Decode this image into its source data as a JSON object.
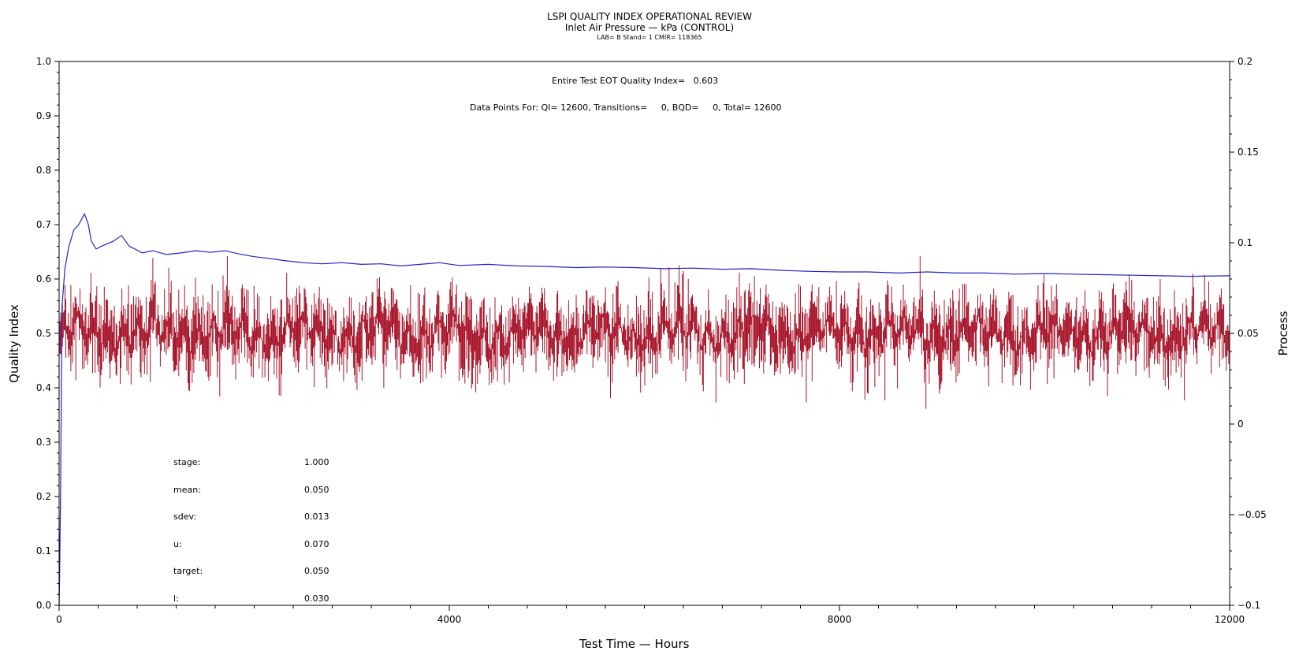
{
  "header": {
    "title": "LSPI QUALITY INDEX OPERATIONAL REVIEW",
    "subtitle": "Inlet Air Pressure — kPa (CONTROL)",
    "meta": "LAB= B Stand= 1 CMIR= 118365"
  },
  "annotations": {
    "eot_qi": "Entire Test EOT Quality Index=   0.603",
    "data_points": "Data Points For: QI= 12600, Transitions=     0, BQD=     0, Total= 12600"
  },
  "stats": [
    {
      "label": "stage:",
      "value": "1.000"
    },
    {
      "label": "mean:",
      "value": "0.050"
    },
    {
      "label": "sdev:",
      "value": "0.013"
    },
    {
      "label": "u:",
      "value": "0.070"
    },
    {
      "label": "target:",
      "value": "0.050"
    },
    {
      "label": "l:",
      "value": "0.030"
    }
  ],
  "colors": {
    "qi_line": "#2323c8",
    "process_line": "#a8152a",
    "axis": "#000000"
  },
  "chart_data": {
    "type": "line",
    "title": "LSPI QUALITY INDEX OPERATIONAL REVIEW",
    "xlabel": "Test Time — Hours",
    "ylabel_left": "Quality Index",
    "ylabel_right": "Process",
    "xlim": [
      0,
      12000
    ],
    "ylim_left": [
      0,
      1.0
    ],
    "ylim_right": [
      -0.1,
      0.2
    ],
    "x_ticks": [
      0,
      4000,
      8000,
      12000
    ],
    "x_tick_labels": [
      "0",
      "4000",
      "8000",
      "12000"
    ],
    "y_left_ticks": [
      0.0,
      0.1,
      0.2,
      0.3,
      0.4,
      0.5,
      0.6,
      0.7,
      0.8,
      0.9,
      1.0
    ],
    "y_left_tick_labels": [
      "0.0",
      "0.1",
      "0.2",
      "0.3",
      "0.4",
      "0.5",
      "0.6",
      "0.7",
      "0.8",
      "0.9",
      "1.0"
    ],
    "y_right_ticks": [
      -0.1,
      -0.05,
      0,
      0.05,
      0.1,
      0.15,
      0.2
    ],
    "y_right_tick_labels": [
      "−0.1",
      "−0.05",
      "0",
      "0.05",
      "0.1",
      "0.15",
      "0.2"
    ],
    "grid": false,
    "series": [
      {
        "axis": "left",
        "x": [
          0,
          5,
          15,
          30,
          60,
          100,
          150,
          200,
          260,
          300,
          330,
          380,
          430,
          500,
          560,
          640,
          720,
          780,
          850,
          960,
          1100,
          1250,
          1400,
          1550,
          1700,
          1850,
          2000,
          2150,
          2300,
          2500,
          2700,
          2900,
          3100,
          3300,
          3500,
          3700,
          3900,
          4100,
          4400,
          4700,
          5000,
          5300,
          5600,
          5900,
          6200,
          6500,
          6800,
          7100,
          7400,
          7700,
          8000,
          8300,
          8600,
          8900,
          9200,
          9500,
          9800,
          10100,
          10400,
          10700,
          11000,
          11300,
          11600,
          12000
        ],
        "y": [
          0.0,
          0.05,
          0.22,
          0.55,
          0.62,
          0.66,
          0.69,
          0.7,
          0.72,
          0.7,
          0.67,
          0.655,
          0.66,
          0.665,
          0.67,
          0.68,
          0.66,
          0.655,
          0.648,
          0.652,
          0.645,
          0.648,
          0.652,
          0.649,
          0.652,
          0.646,
          0.641,
          0.638,
          0.634,
          0.63,
          0.628,
          0.63,
          0.627,
          0.628,
          0.624,
          0.627,
          0.63,
          0.625,
          0.627,
          0.624,
          0.623,
          0.621,
          0.622,
          0.621,
          0.619,
          0.62,
          0.618,
          0.619,
          0.616,
          0.614,
          0.613,
          0.613,
          0.611,
          0.613,
          0.611,
          0.611,
          0.609,
          0.61,
          0.609,
          0.608,
          0.607,
          0.606,
          0.605,
          0.606
        ]
      },
      {
        "axis": "right",
        "mean": 0.05,
        "sdev": 0.013,
        "n_points": 1400,
        "x_range": [
          0,
          12000
        ],
        "y_range": [
          0.0,
          0.1
        ]
      }
    ]
  },
  "labels": {
    "xlabel": "Test Time — Hours",
    "ylabel_left": "Quality Index",
    "ylabel_right": "Process"
  }
}
